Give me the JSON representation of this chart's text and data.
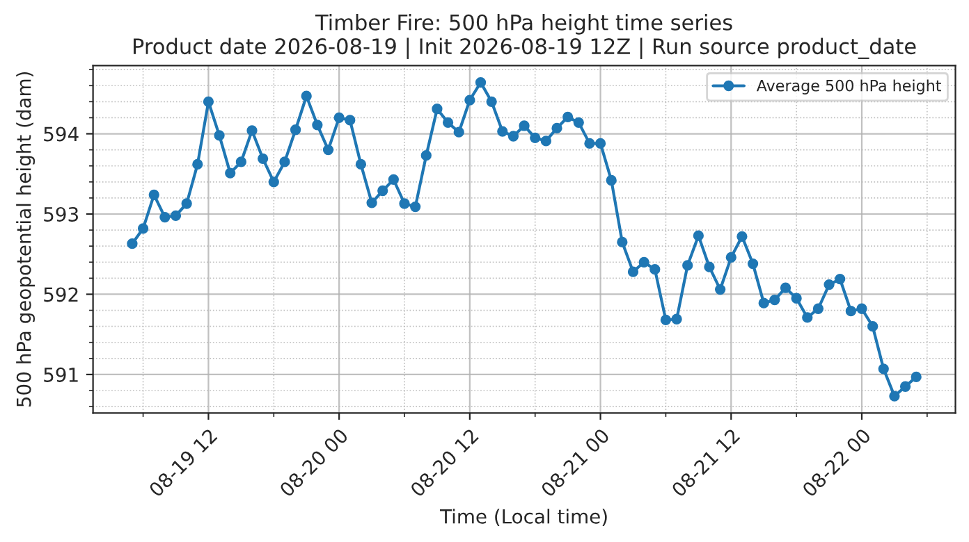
{
  "chart_data": {
    "type": "line",
    "title": "Timber Fire: 500 hPa height time series",
    "subtitle": "Product date 2026-08-19 | Init 2026-08-19 12Z | Run source product_date",
    "xlabel": "Time (Local time)",
    "ylabel": "500 hPa geopotential height (dam)",
    "x": [
      "2026-08-19T05:00",
      "2026-08-19T06:00",
      "2026-08-19T07:00",
      "2026-08-19T08:00",
      "2026-08-19T09:00",
      "2026-08-19T10:00",
      "2026-08-19T11:00",
      "2026-08-19T12:00",
      "2026-08-19T13:00",
      "2026-08-19T14:00",
      "2026-08-19T15:00",
      "2026-08-19T16:00",
      "2026-08-19T17:00",
      "2026-08-19T18:00",
      "2026-08-19T19:00",
      "2026-08-19T20:00",
      "2026-08-19T21:00",
      "2026-08-19T22:00",
      "2026-08-19T23:00",
      "2026-08-20T00:00",
      "2026-08-20T01:00",
      "2026-08-20T02:00",
      "2026-08-20T03:00",
      "2026-08-20T04:00",
      "2026-08-20T05:00",
      "2026-08-20T06:00",
      "2026-08-20T07:00",
      "2026-08-20T08:00",
      "2026-08-20T09:00",
      "2026-08-20T10:00",
      "2026-08-20T11:00",
      "2026-08-20T12:00",
      "2026-08-20T13:00",
      "2026-08-20T14:00",
      "2026-08-20T15:00",
      "2026-08-20T16:00",
      "2026-08-20T17:00",
      "2026-08-20T18:00",
      "2026-08-20T19:00",
      "2026-08-20T20:00",
      "2026-08-20T21:00",
      "2026-08-20T22:00",
      "2026-08-20T23:00",
      "2026-08-21T00:00",
      "2026-08-21T01:00",
      "2026-08-21T02:00",
      "2026-08-21T03:00",
      "2026-08-21T04:00",
      "2026-08-21T05:00",
      "2026-08-21T06:00",
      "2026-08-21T07:00",
      "2026-08-21T08:00",
      "2026-08-21T09:00",
      "2026-08-21T10:00",
      "2026-08-21T11:00",
      "2026-08-21T12:00",
      "2026-08-21T13:00",
      "2026-08-21T14:00",
      "2026-08-21T15:00",
      "2026-08-21T16:00",
      "2026-08-21T17:00",
      "2026-08-21T18:00",
      "2026-08-21T19:00",
      "2026-08-21T20:00",
      "2026-08-21T21:00",
      "2026-08-21T22:00",
      "2026-08-21T23:00",
      "2026-08-22T00:00",
      "2026-08-22T01:00",
      "2026-08-22T02:00",
      "2026-08-22T03:00",
      "2026-08-22T04:00",
      "2026-08-22T05:00"
    ],
    "series": [
      {
        "name": "Average 500 hPa height",
        "color": "#1f77b4",
        "values": [
          592.63,
          592.82,
          593.24,
          592.96,
          592.98,
          593.13,
          593.62,
          594.4,
          593.98,
          593.51,
          593.65,
          594.04,
          593.69,
          593.4,
          593.65,
          594.05,
          594.47,
          594.11,
          593.8,
          594.2,
          594.17,
          593.62,
          593.14,
          593.29,
          593.43,
          593.13,
          593.09,
          593.73,
          594.31,
          594.14,
          594.02,
          594.42,
          594.64,
          594.4,
          594.03,
          593.97,
          594.1,
          593.95,
          593.91,
          594.07,
          594.21,
          594.14,
          593.88,
          593.88,
          593.42,
          592.65,
          592.28,
          592.4,
          592.31,
          591.68,
          591.69,
          592.36,
          592.73,
          592.34,
          592.06,
          592.46,
          592.72,
          592.38,
          591.89,
          591.93,
          592.08,
          591.95,
          591.71,
          591.82,
          592.12,
          592.19,
          591.79,
          591.82,
          591.6,
          591.07,
          590.73,
          590.85,
          590.97
        ]
      }
    ],
    "xlim": [
      "2026-08-19T01:24",
      "2026-08-22T08:36"
    ],
    "xticks": [
      {
        "value": "2026-08-19T06:00",
        "label": null
      },
      {
        "value": "2026-08-19T12:00",
        "label": "08-19 12"
      },
      {
        "value": "2026-08-19T18:00",
        "label": null
      },
      {
        "value": "2026-08-20T00:00",
        "label": "08-20 00"
      },
      {
        "value": "2026-08-20T06:00",
        "label": null
      },
      {
        "value": "2026-08-20T12:00",
        "label": "08-20 12"
      },
      {
        "value": "2026-08-20T18:00",
        "label": null
      },
      {
        "value": "2026-08-21T00:00",
        "label": "08-21 00"
      },
      {
        "value": "2026-08-21T06:00",
        "label": null
      },
      {
        "value": "2026-08-21T12:00",
        "label": "08-21 12"
      },
      {
        "value": "2026-08-21T18:00",
        "label": null
      },
      {
        "value": "2026-08-22T00:00",
        "label": "08-22 00"
      },
      {
        "value": "2026-08-22T06:00",
        "label": null
      }
    ],
    "ylim": [
      590.52,
      594.85
    ],
    "yticks": [
      {
        "value": 590.6,
        "label": null
      },
      {
        "value": 590.8,
        "label": null
      },
      591,
      {
        "value": 591.2,
        "label": null
      },
      {
        "value": 591.4,
        "label": null
      },
      {
        "value": 591.6,
        "label": null
      },
      {
        "value": 591.8,
        "label": null
      },
      592,
      {
        "value": 592.2,
        "label": null
      },
      {
        "value": 592.4,
        "label": null
      },
      {
        "value": 592.6,
        "label": null
      },
      {
        "value": 592.8,
        "label": null
      },
      593,
      {
        "value": 593.2,
        "label": null
      },
      {
        "value": 593.4,
        "label": null
      },
      {
        "value": 593.6,
        "label": null
      },
      {
        "value": 593.8,
        "label": null
      },
      594,
      {
        "value": 594.2,
        "label": null
      },
      {
        "value": 594.4,
        "label": null
      },
      {
        "value": 594.6,
        "label": null
      },
      {
        "value": 594.8,
        "label": null
      }
    ],
    "grid": true,
    "legend": "top right",
    "marker": "circle",
    "line_style": "solid"
  }
}
